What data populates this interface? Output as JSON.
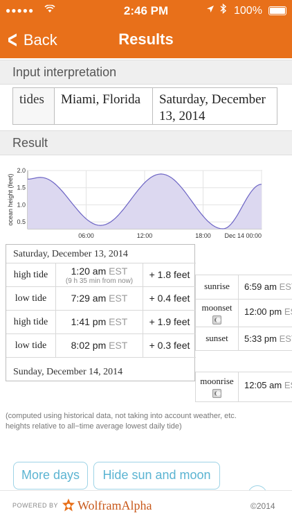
{
  "status_bar": {
    "signal": "●●●●●",
    "time": "2:46 PM",
    "battery": "100%"
  },
  "nav": {
    "back_label": "Back",
    "title": "Results"
  },
  "input_interpretation": {
    "header": "Input interpretation",
    "cells": [
      "tides",
      "Miami, Florida",
      "Saturday, December 13, 2014"
    ]
  },
  "result": {
    "header": "Result"
  },
  "chart_data": {
    "type": "area",
    "ylabel": "ocean height (feet)",
    "ylim": [
      0.3,
      2.0
    ],
    "yticks": [
      "2.0",
      "1.5",
      "1.0",
      "0.5"
    ],
    "xticks": [
      "06:00",
      "12:00",
      "18:00",
      "Dec 14 00:00"
    ],
    "x_hours": [
      0,
      1.33,
      7.48,
      13.68,
      20.03,
      24
    ],
    "y_values": [
      1.75,
      1.8,
      0.4,
      1.9,
      0.3,
      1.6
    ],
    "fill_color": "#dcd8f0",
    "line_color": "#6b63c4"
  },
  "tides": {
    "date1": "Saturday, December 13, 2014",
    "date2": "Sunday, December 14, 2014",
    "rows": [
      {
        "type": "high tide",
        "time": "1:20 am",
        "tz": "EST",
        "note": "(9 h 35 min from now)",
        "height": "+ 1.8 feet"
      },
      {
        "type": "low tide",
        "time": "7:29 am",
        "tz": "EST",
        "note": "",
        "height": "+ 0.4 feet"
      },
      {
        "type": "high tide",
        "time": "1:41 pm",
        "tz": "EST",
        "note": "",
        "height": "+ 1.9 feet"
      },
      {
        "type": "low tide",
        "time": "8:02 pm",
        "tz": "EST",
        "note": "",
        "height": "+ 0.3 feet"
      }
    ]
  },
  "sun_moon": {
    "day1": [
      {
        "label": "sunrise",
        "time": "6:59 am",
        "tz": "EST"
      },
      {
        "label": "moonset",
        "time": "12:00 pm",
        "tz": "EST"
      },
      {
        "label": "sunset",
        "time": "5:33 pm",
        "tz": "EST"
      }
    ],
    "day2": [
      {
        "label": "moonrise",
        "time": "12:05 am",
        "tz": "EST"
      }
    ]
  },
  "footnote": {
    "line1": "(computed using historical data, not taking into account weather, etc.",
    "line2": "heights relative to all−time average lowest daily tide)"
  },
  "buttons": {
    "more_days": "More days",
    "hide_sun_moon": "Hide sun and moon"
  },
  "footer": {
    "powered_by": "POWERED BY",
    "brand": "WolframAlpha",
    "copyright": "©2014"
  },
  "colors": {
    "accent": "#e8701a",
    "button_text": "#5bb4d2"
  }
}
